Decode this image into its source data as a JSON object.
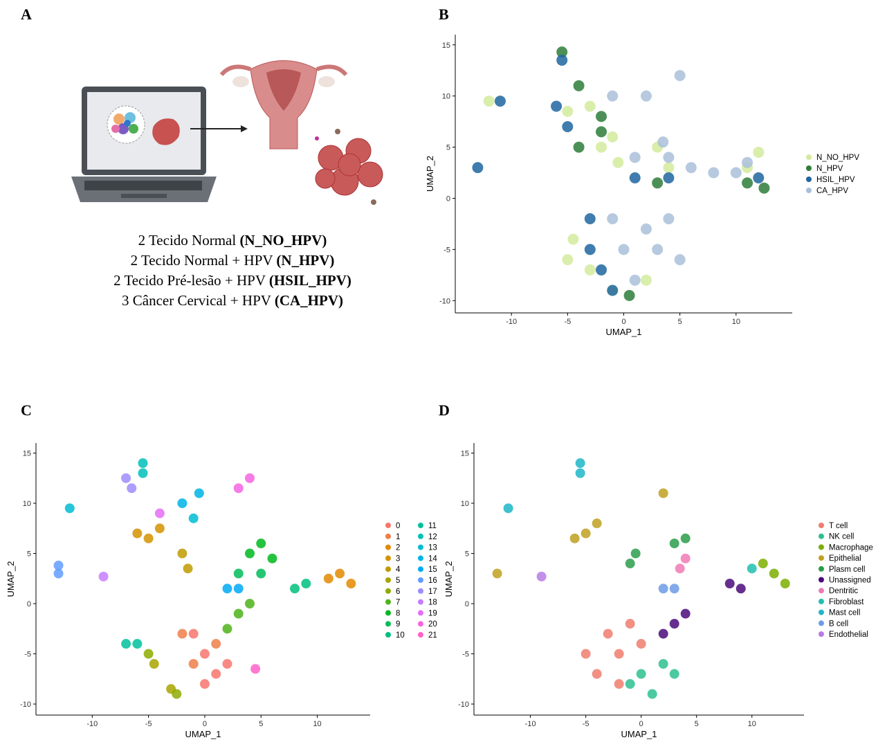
{
  "panels": [
    "A",
    "B",
    "C",
    "D"
  ],
  "panel_a": {
    "lines": [
      {
        "text": "2 Tecido Normal",
        "code": "(N_NO_HPV)"
      },
      {
        "text": "2 Tecido Normal + HPV",
        "code": "(N_HPV)"
      },
      {
        "text": "2 Tecido Pré-lesão + HPV",
        "code": "(HSIL_HPV)"
      },
      {
        "text": "3 Câncer Cervical + HPV",
        "code": "(CA_HPV)"
      }
    ]
  },
  "chart_data": [
    {
      "type": "scatter",
      "x_label": "UMAP_1",
      "y_label": "UMAP_2",
      "xlim": [
        -15,
        15
      ],
      "ylim": [
        -11.2,
        16
      ],
      "xticks": [
        -10,
        -5,
        0,
        5,
        10
      ],
      "yticks": [
        -10,
        -5,
        0,
        5,
        10,
        15
      ],
      "legend": "right",
      "legend_columns": 1,
      "series": [
        {
          "name": "N_NO_HPV",
          "color": "#d3eb9e",
          "x": [
            -12,
            -4.5,
            -3,
            -1,
            -5,
            2,
            -2,
            -1,
            -5,
            12,
            11,
            -3,
            -0.5,
            3,
            4
          ],
          "values": [
            9.5,
            -4,
            -7,
            -9,
            -6,
            -8,
            5,
            6,
            8.5,
            4.5,
            3,
            9,
            3.5,
            5,
            3
          ]
        },
        {
          "name": "N_HPV",
          "color": "#2e7d3a",
          "x": [
            -5.5,
            -4,
            -2,
            -4,
            11,
            12.5,
            -2,
            0.5,
            3
          ],
          "values": [
            14.3,
            11,
            8,
            5,
            1.5,
            1,
            6.5,
            -9.5,
            1.5
          ]
        },
        {
          "name": "HSIL_HPV",
          "color": "#1f66a0",
          "x": [
            -13,
            -11,
            -5.5,
            -5,
            -3,
            -3,
            -2,
            -1,
            1,
            -6,
            4,
            12
          ],
          "values": [
            3,
            9.5,
            13.5,
            7,
            -2,
            -5,
            -7,
            -9,
            2,
            9,
            2,
            2
          ]
        },
        {
          "name": "CA_HPV",
          "color": "#a9bfd9",
          "x": [
            2,
            0,
            3,
            1,
            4,
            -1,
            2,
            5,
            -1,
            4,
            6,
            8,
            10,
            11,
            3.5,
            1,
            5
          ],
          "values": [
            -3,
            -5,
            -5,
            -8,
            -2,
            -2,
            10,
            12,
            10,
            4,
            3,
            2.5,
            2.5,
            3.5,
            5.5,
            4,
            -6
          ]
        }
      ]
    },
    {
      "type": "scatter",
      "x_label": "UMAP_1",
      "y_label": "UMAP_2",
      "xlim": [
        -15,
        14.7
      ],
      "ylim": [
        -11.1,
        16
      ],
      "xticks": [
        -10,
        -5,
        0,
        5,
        10
      ],
      "yticks": [
        -10,
        -5,
        0,
        5,
        10,
        15
      ],
      "legend": "right",
      "legend_columns": 2,
      "series": [
        {
          "name": "0",
          "color": "#F8766D",
          "x": [
            0,
            1,
            -1,
            2,
            0
          ],
          "values": [
            -5,
            -7,
            -3,
            -6,
            -8
          ]
        },
        {
          "name": "1",
          "color": "#EF7F49",
          "x": [
            -2,
            -1,
            1
          ],
          "values": [
            -3,
            -6,
            -4
          ]
        },
        {
          "name": "2",
          "color": "#E38900",
          "x": [
            12,
            11,
            13
          ],
          "values": [
            3,
            2.5,
            2
          ]
        },
        {
          "name": "3",
          "color": "#D39200",
          "x": [
            -5,
            -4,
            -6
          ],
          "values": [
            6.5,
            7.5,
            7
          ]
        },
        {
          "name": "4",
          "color": "#C09B00",
          "x": [
            -1.5,
            -2
          ],
          "values": [
            3.5,
            5
          ]
        },
        {
          "name": "5",
          "color": "#A9A400",
          "x": [
            -4.5,
            -3
          ],
          "values": [
            -6,
            -8.5
          ]
        },
        {
          "name": "6",
          "color": "#8EAB00",
          "x": [
            -2.5,
            -5
          ],
          "values": [
            -9,
            -5
          ]
        },
        {
          "name": "7",
          "color": "#4DB31A",
          "x": [
            3,
            2,
            4
          ],
          "values": [
            -1,
            -2.5,
            0
          ]
        },
        {
          "name": "8",
          "color": "#00B81F",
          "x": [
            4,
            5,
            6
          ],
          "values": [
            5,
            6,
            4.5
          ]
        },
        {
          "name": "9",
          "color": "#00BC59",
          "x": [
            3,
            5
          ],
          "values": [
            3,
            3
          ]
        },
        {
          "name": "10",
          "color": "#00BF7D",
          "x": [
            9,
            8
          ],
          "values": [
            2,
            1.5
          ]
        },
        {
          "name": "11",
          "color": "#00C19C",
          "x": [
            -6,
            -7
          ],
          "values": [
            -4,
            -4
          ]
        },
        {
          "name": "12",
          "color": "#00C0B8",
          "x": [
            -5.5,
            -5.5
          ],
          "values": [
            14,
            13
          ]
        },
        {
          "name": "13",
          "color": "#00BCD1",
          "x": [
            -12,
            -1
          ],
          "values": [
            9.5,
            8.5
          ]
        },
        {
          "name": "14",
          "color": "#00B4E6",
          "x": [
            -2,
            -0.5
          ],
          "values": [
            10,
            11
          ]
        },
        {
          "name": "15",
          "color": "#00A9F6",
          "x": [
            2,
            3
          ],
          "values": [
            1.5,
            1.5
          ]
        },
        {
          "name": "16",
          "color": "#619CFF",
          "x": [
            -13,
            -13
          ],
          "values": [
            3,
            3.8
          ]
        },
        {
          "name": "17",
          "color": "#9C8DFF",
          "x": [
            -6.5,
            -7
          ],
          "values": [
            11.5,
            12.5
          ]
        },
        {
          "name": "18",
          "color": "#C77CFF",
          "x": [
            -9
          ],
          "values": [
            2.7
          ]
        },
        {
          "name": "19",
          "color": "#E46FF6",
          "x": [
            -4
          ],
          "values": [
            9
          ]
        },
        {
          "name": "20",
          "color": "#F564E3",
          "x": [
            3,
            4
          ],
          "values": [
            11.5,
            12.5
          ]
        },
        {
          "name": "21",
          "color": "#FF61C9",
          "x": [
            4.5
          ],
          "values": [
            -6.5
          ]
        }
      ]
    },
    {
      "type": "scatter",
      "x_label": "UMAP_1",
      "y_label": "UMAP_2",
      "xlim": [
        -15.1,
        14.7
      ],
      "ylim": [
        -11.1,
        16
      ],
      "xticks": [
        -10,
        -5,
        0,
        5,
        10
      ],
      "yticks": [
        -10,
        -5,
        0,
        5,
        10,
        15
      ],
      "legend": "right",
      "legend_columns": 1,
      "series": [
        {
          "name": "T cell",
          "color": "#F07D6E",
          "x": [
            -3,
            -2,
            -5,
            -1,
            -4,
            -2,
            0
          ],
          "values": [
            -3,
            -5,
            -5,
            -2,
            -7,
            -8,
            -4
          ]
        },
        {
          "name": "NK cell",
          "color": "#2EBF91",
          "x": [
            0,
            1,
            2,
            -1,
            3
          ],
          "values": [
            -7,
            -9,
            -6,
            -8,
            -7
          ]
        },
        {
          "name": "Macrophage",
          "color": "#7CAE00",
          "x": [
            12,
            13,
            11
          ],
          "values": [
            3,
            2,
            4
          ]
        },
        {
          "name": "Epithelial",
          "color": "#C0A020",
          "x": [
            -5,
            -4,
            -6,
            2,
            -13
          ],
          "values": [
            7,
            8,
            6.5,
            11,
            3
          ]
        },
        {
          "name": "Plasm cell",
          "color": "#2A9D4A",
          "x": [
            -1,
            -0.5,
            3,
            4
          ],
          "values": [
            4,
            5,
            6,
            6.5
          ]
        },
        {
          "name": "Unassigned",
          "color": "#4B0A7A",
          "x": [
            2,
            3,
            4,
            8,
            9
          ],
          "values": [
            -3,
            -2,
            -1,
            2,
            1.5
          ]
        },
        {
          "name": "Dentritic",
          "color": "#F07AB5",
          "x": [
            4,
            3.5
          ],
          "values": [
            4.5,
            3.5
          ]
        },
        {
          "name": "Fibroblast",
          "color": "#1FBFAE",
          "x": [
            10
          ],
          "values": [
            3.5
          ]
        },
        {
          "name": "Mast cell",
          "color": "#1FB6C8",
          "x": [
            -5.5,
            -12,
            -5.5
          ],
          "values": [
            14,
            9.5,
            13
          ]
        },
        {
          "name": "B cell",
          "color": "#6C9BE8",
          "x": [
            2,
            3
          ],
          "values": [
            1.5,
            1.5
          ]
        },
        {
          "name": "Endothelial",
          "color": "#B77BE8",
          "x": [
            -9
          ],
          "values": [
            2.7
          ]
        }
      ]
    }
  ]
}
